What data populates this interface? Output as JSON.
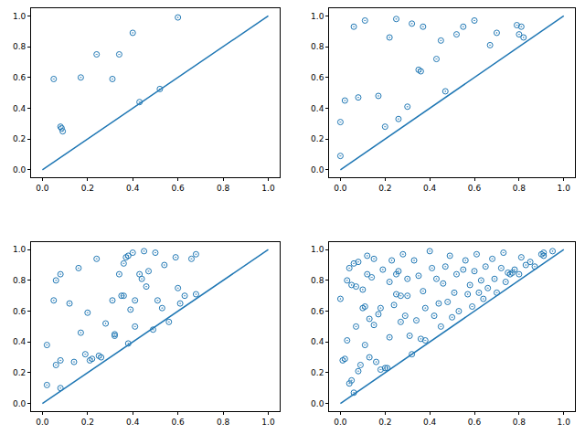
{
  "chart_data": [
    {
      "type": "scatter",
      "xlim": [
        -0.05,
        1.05
      ],
      "ylim": [
        -0.05,
        1.05
      ],
      "xticks": [
        {
          "value": 0,
          "label": "0.0"
        },
        {
          "value": 0.2,
          "label": "0.2"
        },
        {
          "value": 0.4,
          "label": "0.4"
        },
        {
          "value": 0.6,
          "label": "0.6"
        },
        {
          "value": 0.8,
          "label": "0.8"
        },
        {
          "value": 1,
          "label": "1.0"
        }
      ],
      "yticks": [
        {
          "value": 0,
          "label": "0.0"
        },
        {
          "value": 0.2,
          "label": "0.2"
        },
        {
          "value": 0.4,
          "label": "0.4"
        },
        {
          "value": 0.6,
          "label": "0.6"
        },
        {
          "value": 0.8,
          "label": "0.8"
        },
        {
          "value": 1,
          "label": "1.0"
        }
      ],
      "grid": false,
      "series": [
        {
          "type": "scatter",
          "color": "#1f77b4",
          "marker": "circle",
          "x": [
            0.05,
            0.08,
            0.085,
            0.09,
            0.17,
            0.24,
            0.31,
            0.34,
            0.4,
            0.43,
            0.52,
            0.6
          ],
          "values": [
            0.59,
            0.28,
            0.27,
            0.25,
            0.6,
            0.75,
            0.59,
            0.75,
            0.89,
            0.44,
            0.525,
            0.99
          ]
        },
        {
          "type": "line",
          "color": "#1f77b4",
          "line_style": "solid",
          "x": [
            0,
            1
          ],
          "values": [
            0,
            1
          ]
        }
      ]
    },
    {
      "type": "scatter",
      "xlim": [
        -0.05,
        1.05
      ],
      "ylim": [
        -0.05,
        1.05
      ],
      "xticks": [
        {
          "value": 0,
          "label": "0.0"
        },
        {
          "value": 0.2,
          "label": "0.2"
        },
        {
          "value": 0.4,
          "label": "0.4"
        },
        {
          "value": 0.6,
          "label": "0.6"
        },
        {
          "value": 0.8,
          "label": "0.8"
        },
        {
          "value": 1,
          "label": "1.0"
        }
      ],
      "yticks": [
        {
          "value": 0,
          "label": "0.0"
        },
        {
          "value": 0.2,
          "label": "0.2"
        },
        {
          "value": 0.4,
          "label": "0.4"
        },
        {
          "value": 0.6,
          "label": "0.6"
        },
        {
          "value": 0.8,
          "label": "0.8"
        },
        {
          "value": 1,
          "label": "1.0"
        }
      ],
      "grid": false,
      "series": [
        {
          "type": "scatter",
          "color": "#1f77b4",
          "marker": "circle",
          "x": [
            0.0,
            0.0,
            0.02,
            0.06,
            0.08,
            0.11,
            0.17,
            0.2,
            0.22,
            0.25,
            0.26,
            0.3,
            0.32,
            0.35,
            0.36,
            0.37,
            0.43,
            0.45,
            0.47,
            0.52,
            0.55,
            0.6,
            0.67,
            0.7,
            0.79,
            0.81,
            0.8,
            0.82
          ],
          "values": [
            0.09,
            0.31,
            0.45,
            0.93,
            0.47,
            0.97,
            0.48,
            0.28,
            0.86,
            0.98,
            0.33,
            0.41,
            0.95,
            0.65,
            0.64,
            0.93,
            0.72,
            0.84,
            0.51,
            0.88,
            0.93,
            0.97,
            0.81,
            0.89,
            0.94,
            0.93,
            0.88,
            0.86
          ]
        },
        {
          "type": "line",
          "color": "#1f77b4",
          "line_style": "solid",
          "x": [
            0,
            1
          ],
          "values": [
            0,
            1
          ]
        }
      ]
    },
    {
      "type": "scatter",
      "xlim": [
        -0.05,
        1.05
      ],
      "ylim": [
        -0.05,
        1.05
      ],
      "xticks": [
        {
          "value": 0,
          "label": "0.0"
        },
        {
          "value": 0.2,
          "label": "0.2"
        },
        {
          "value": 0.4,
          "label": "0.4"
        },
        {
          "value": 0.6,
          "label": "0.6"
        },
        {
          "value": 0.8,
          "label": "0.8"
        },
        {
          "value": 1,
          "label": "1.0"
        }
      ],
      "yticks": [
        {
          "value": 0,
          "label": "0.0"
        },
        {
          "value": 0.2,
          "label": "0.2"
        },
        {
          "value": 0.4,
          "label": "0.4"
        },
        {
          "value": 0.6,
          "label": "0.6"
        },
        {
          "value": 0.8,
          "label": "0.8"
        },
        {
          "value": 1,
          "label": "1.0"
        }
      ],
      "grid": false,
      "series": [
        {
          "type": "scatter",
          "color": "#1f77b4",
          "marker": "circle",
          "x": [
            0.02,
            0.02,
            0.05,
            0.06,
            0.06,
            0.08,
            0.08,
            0.08,
            0.12,
            0.14,
            0.16,
            0.17,
            0.19,
            0.2,
            0.21,
            0.22,
            0.24,
            0.25,
            0.26,
            0.28,
            0.31,
            0.32,
            0.32,
            0.34,
            0.35,
            0.36,
            0.36,
            0.37,
            0.38,
            0.38,
            0.39,
            0.4,
            0.41,
            0.41,
            0.43,
            0.44,
            0.45,
            0.46,
            0.47,
            0.49,
            0.5,
            0.51,
            0.53,
            0.54,
            0.56,
            0.59,
            0.6,
            0.61,
            0.63,
            0.66,
            0.68,
            0.68
          ],
          "values": [
            0.38,
            0.12,
            0.67,
            0.8,
            0.25,
            0.84,
            0.28,
            0.1,
            0.65,
            0.27,
            0.88,
            0.46,
            0.32,
            0.59,
            0.28,
            0.29,
            0.94,
            0.31,
            0.3,
            0.52,
            0.67,
            0.45,
            0.44,
            0.84,
            0.7,
            0.7,
            0.91,
            0.95,
            0.39,
            0.96,
            0.61,
            0.98,
            0.67,
            0.5,
            0.84,
            0.81,
            0.99,
            0.76,
            0.86,
            0.48,
            0.98,
            0.67,
            0.62,
            0.9,
            0.53,
            0.95,
            0.75,
            0.65,
            0.7,
            0.94,
            0.71,
            0.97
          ]
        },
        {
          "type": "line",
          "color": "#1f77b4",
          "line_style": "solid",
          "x": [
            0,
            1
          ],
          "values": [
            0,
            1
          ]
        }
      ]
    },
    {
      "type": "scatter",
      "xlim": [
        -0.05,
        1.05
      ],
      "ylim": [
        -0.05,
        1.05
      ],
      "xticks": [
        {
          "value": 0,
          "label": "0.0"
        },
        {
          "value": 0.2,
          "label": "0.2"
        },
        {
          "value": 0.4,
          "label": "0.4"
        },
        {
          "value": 0.6,
          "label": "0.6"
        },
        {
          "value": 0.8,
          "label": "0.8"
        },
        {
          "value": 1,
          "label": "1.0"
        }
      ],
      "yticks": [
        {
          "value": 0,
          "label": "0.0"
        },
        {
          "value": 0.2,
          "label": "0.2"
        },
        {
          "value": 0.4,
          "label": "0.4"
        },
        {
          "value": 0.6,
          "label": "0.6"
        },
        {
          "value": 0.8,
          "label": "0.8"
        },
        {
          "value": 1,
          "label": "1.0"
        }
      ],
      "grid": false,
      "series": [
        {
          "type": "scatter",
          "color": "#1f77b4",
          "marker": "circle",
          "x": [
            0.0,
            0.01,
            0.02,
            0.03,
            0.03,
            0.04,
            0.04,
            0.05,
            0.05,
            0.06,
            0.06,
            0.07,
            0.07,
            0.08,
            0.08,
            0.09,
            0.1,
            0.1,
            0.11,
            0.11,
            0.12,
            0.12,
            0.13,
            0.13,
            0.14,
            0.15,
            0.15,
            0.16,
            0.17,
            0.18,
            0.18,
            0.19,
            0.2,
            0.21,
            0.22,
            0.22,
            0.23,
            0.24,
            0.25,
            0.25,
            0.26,
            0.27,
            0.27,
            0.28,
            0.29,
            0.3,
            0.3,
            0.31,
            0.32,
            0.33,
            0.34,
            0.35,
            0.36,
            0.37,
            0.38,
            0.38,
            0.4,
            0.41,
            0.42,
            0.43,
            0.44,
            0.45,
            0.46,
            0.47,
            0.48,
            0.49,
            0.5,
            0.51,
            0.52,
            0.53,
            0.55,
            0.56,
            0.57,
            0.58,
            0.59,
            0.6,
            0.61,
            0.62,
            0.63,
            0.64,
            0.65,
            0.66,
            0.68,
            0.69,
            0.7,
            0.72,
            0.73,
            0.74,
            0.75,
            0.76,
            0.77,
            0.78,
            0.8,
            0.81,
            0.83,
            0.85,
            0.87,
            0.9,
            0.91,
            0.91,
            0.95
          ],
          "values": [
            0.68,
            0.28,
            0.29,
            0.8,
            0.41,
            0.88,
            0.13,
            0.77,
            0.15,
            0.07,
            0.91,
            0.76,
            0.5,
            0.92,
            0.21,
            0.25,
            0.74,
            0.62,
            0.63,
            0.38,
            0.84,
            0.96,
            0.55,
            0.3,
            0.82,
            0.94,
            0.51,
            0.27,
            0.58,
            0.62,
            0.22,
            0.87,
            0.23,
            0.23,
            0.79,
            0.43,
            0.93,
            0.64,
            0.84,
            0.71,
            0.86,
            0.7,
            0.53,
            0.97,
            0.57,
            0.81,
            0.7,
            0.44,
            0.32,
            0.93,
            0.54,
            0.83,
            0.42,
            0.73,
            0.62,
            0.41,
            0.99,
            0.88,
            0.57,
            0.81,
            0.65,
            0.5,
            0.78,
            0.89,
            0.66,
            0.96,
            0.56,
            0.72,
            0.84,
            0.6,
            0.87,
            0.93,
            0.71,
            0.77,
            0.63,
            0.86,
            0.97,
            0.72,
            0.8,
            0.68,
            0.89,
            0.75,
            0.94,
            0.81,
            0.72,
            0.88,
            0.98,
            0.79,
            0.85,
            0.84,
            0.85,
            0.87,
            0.84,
            0.95,
            0.9,
            0.92,
            0.89,
            0.97,
            0.96,
            0.98,
            0.99
          ]
        },
        {
          "type": "line",
          "color": "#1f77b4",
          "line_style": "solid",
          "x": [
            0,
            1
          ],
          "values": [
            0,
            1
          ]
        }
      ]
    }
  ]
}
